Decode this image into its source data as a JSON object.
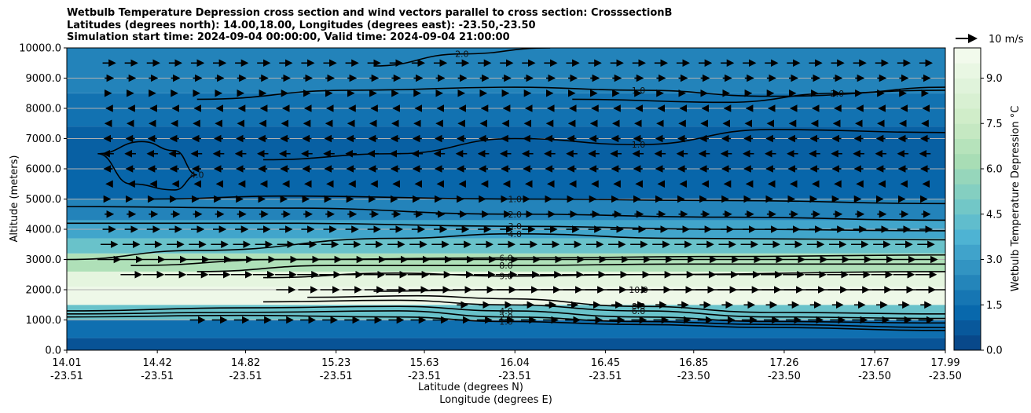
{
  "chart_data": {
    "type": "heatmap",
    "subtype": "filled contour cross section with contour lines and wind vectors",
    "title_lines": [
      "Wetbulb Temperature Depression cross section and wind vectors parallel to cross section: CrosssectionB",
      "Latitudes (degrees north): 14.00,18.00, Longitudes (degrees east): -23.50,-23.50",
      "Simulation start time: 2024-09-04 00:00:00, Valid time: 2024-09-04 21:00:00"
    ],
    "ylabel": "Altitude (meters)",
    "xlabel_lat": "Latitude (degrees N)",
    "xlabel_lon": "Longitude (degrees E)",
    "ylim": [
      0,
      10000
    ],
    "y_ticks": [
      "0.0",
      "1000.0",
      "2000.0",
      "3000.0",
      "4000.0",
      "5000.0",
      "6000.0",
      "7000.0",
      "8000.0",
      "9000.0",
      "10000.0"
    ],
    "y_tick_values": [
      0,
      1000,
      2000,
      3000,
      4000,
      5000,
      6000,
      7000,
      8000,
      9000,
      10000
    ],
    "xlim": [
      14.01,
      17.99
    ],
    "x_ticks_lat": [
      "14.01",
      "14.42",
      "14.82",
      "15.23",
      "15.63",
      "16.04",
      "16.45",
      "16.85",
      "17.26",
      "17.67",
      "17.99"
    ],
    "x_ticks_lon": [
      "-23.51",
      "-23.51",
      "-23.51",
      "-23.51",
      "-23.51",
      "-23.51",
      "-23.51",
      "-23.50",
      "-23.50",
      "-23.50",
      "-23.50"
    ],
    "x_tick_values": [
      14.01,
      14.42,
      14.82,
      15.23,
      15.63,
      16.04,
      16.45,
      16.85,
      17.26,
      17.67,
      17.99
    ],
    "grid": "horizontal",
    "colorbar": {
      "label": "Wetbulb Temperature Depression °C",
      "range": [
        0,
        10
      ],
      "ticks": [
        "0.0",
        "1.5",
        "3.0",
        "4.5",
        "6.0",
        "7.5",
        "9.0"
      ],
      "tick_values": [
        0,
        1.5,
        3,
        4.5,
        6,
        7.5,
        9
      ],
      "levels": 20,
      "colormap": [
        "#084081",
        "#0868ac",
        "#2b8cbe",
        "#4eb3d3",
        "#7bccc4",
        "#a8ddb5",
        "#ccebc5",
        "#e0f3db",
        "#f7fcf0"
      ]
    },
    "quiver_key": "10 m/s",
    "field_bands": [
      {
        "y_from": 0,
        "y_to": 400,
        "value": 0.6
      },
      {
        "y_from": 400,
        "y_to": 1000,
        "value": 1.5
      },
      {
        "y_from": 1000,
        "y_to": 1500,
        "value": 4.5
      },
      {
        "y_from": 1500,
        "y_to": 2100,
        "value": 9.5
      },
      {
        "y_from": 2100,
        "y_to": 2600,
        "value": 9.0
      },
      {
        "y_from": 2600,
        "y_to": 3200,
        "value": 6.5
      },
      {
        "y_from": 3200,
        "y_to": 3700,
        "value": 4.5
      },
      {
        "y_from": 3700,
        "y_to": 4300,
        "value": 3.3
      },
      {
        "y_from": 4300,
        "y_to": 5000,
        "value": 2.2
      },
      {
        "y_from": 5000,
        "y_to": 6000,
        "value": 1.2
      },
      {
        "y_from": 6000,
        "y_to": 7400,
        "value": 1.0
      },
      {
        "y_from": 7400,
        "y_to": 8500,
        "value": 1.6
      },
      {
        "y_from": 8500,
        "y_to": 10000,
        "value": 2.2
      }
    ],
    "contour_lines": [
      {
        "label": "1.0",
        "points": [
          [
            14.01,
            1100
          ],
          [
            14.8,
            1150
          ],
          [
            15.5,
            1100
          ],
          [
            16.0,
            950
          ],
          [
            16.6,
            850
          ],
          [
            17.2,
            750
          ],
          [
            17.99,
            650
          ]
        ]
      },
      {
        "label": "2.0",
        "points": [
          [
            14.01,
            1200
          ],
          [
            14.8,
            1250
          ],
          [
            15.5,
            1300
          ],
          [
            16.0,
            1100
          ],
          [
            16.6,
            950
          ],
          [
            17.2,
            850
          ],
          [
            17.99,
            750
          ]
        ]
      },
      {
        "label": "4.0",
        "points": [
          [
            14.01,
            1300
          ],
          [
            14.8,
            1400
          ],
          [
            15.5,
            1450
          ],
          [
            16.0,
            1300
          ],
          [
            16.6,
            1100
          ],
          [
            17.2,
            950
          ],
          [
            17.99,
            900
          ]
        ]
      },
      {
        "label": "6.0",
        "points": [
          [
            14.9,
            1600
          ],
          [
            15.5,
            1650
          ],
          [
            16.0,
            1500
          ],
          [
            16.6,
            1300
          ],
          [
            17.2,
            1100
          ],
          [
            17.99,
            1050
          ]
        ]
      },
      {
        "label": "8.0",
        "points": [
          [
            15.1,
            1750
          ],
          [
            15.6,
            1800
          ],
          [
            16.0,
            1700
          ],
          [
            16.6,
            1450
          ],
          [
            17.2,
            1250
          ],
          [
            17.99,
            1200
          ]
        ]
      },
      {
        "label": "10.0",
        "points": [
          [
            15.4,
            1950
          ],
          [
            16.0,
            2000
          ],
          [
            16.6,
            2000
          ],
          [
            17.2,
            2000
          ],
          [
            17.99,
            2000
          ]
        ]
      },
      {
        "label": "9.0",
        "points": [
          [
            14.9,
            2400
          ],
          [
            15.5,
            2550
          ],
          [
            16.0,
            2450
          ],
          [
            16.6,
            2500
          ],
          [
            17.99,
            2600
          ]
        ]
      },
      {
        "label": "8.0",
        "points": [
          [
            14.6,
            2600
          ],
          [
            15.2,
            2800
          ],
          [
            16.0,
            2800
          ],
          [
            16.8,
            2850
          ],
          [
            17.99,
            2850
          ]
        ]
      },
      {
        "label": "6.0",
        "points": [
          [
            14.3,
            2800
          ],
          [
            15.0,
            3000
          ],
          [
            16.0,
            3050
          ],
          [
            17.0,
            3100
          ],
          [
            17.99,
            3150
          ]
        ]
      },
      {
        "label": "4.0",
        "points": [
          [
            14.01,
            3000
          ],
          [
            14.6,
            3300
          ],
          [
            15.5,
            3700
          ],
          [
            16.04,
            3850
          ],
          [
            16.8,
            3700
          ],
          [
            17.99,
            3650
          ]
        ]
      },
      {
        "label": "3.0",
        "points": [
          [
            14.01,
            4200
          ],
          [
            15.0,
            4200
          ],
          [
            16.04,
            4100
          ],
          [
            17.0,
            4000
          ],
          [
            17.99,
            3950
          ]
        ]
      },
      {
        "label": "2.0",
        "points": [
          [
            14.01,
            4750
          ],
          [
            15.0,
            4700
          ],
          [
            16.04,
            4500
          ],
          [
            17.0,
            4400
          ],
          [
            17.99,
            4300
          ]
        ]
      },
      {
        "label": "1.0",
        "points": [
          [
            14.4,
            5000
          ],
          [
            15.0,
            5100
          ],
          [
            16.04,
            5000
          ],
          [
            17.0,
            4950
          ],
          [
            17.99,
            4850
          ]
        ]
      },
      {
        "label": "4.0",
        "points": [
          [
            14.15,
            6500
          ],
          [
            14.35,
            6900
          ],
          [
            14.5,
            6600
          ],
          [
            14.6,
            5800
          ],
          [
            14.5,
            5300
          ],
          [
            14.3,
            5500
          ],
          [
            14.15,
            6500
          ]
        ]
      },
      {
        "label": "1.0",
        "points": [
          [
            14.9,
            6300
          ],
          [
            15.5,
            6500
          ],
          [
            16.04,
            7000
          ],
          [
            16.6,
            6800
          ],
          [
            17.2,
            7300
          ],
          [
            17.99,
            7200
          ]
        ]
      },
      {
        "label": "1.0",
        "points": [
          [
            14.6,
            8300
          ],
          [
            15.3,
            8600
          ],
          [
            16.04,
            8700
          ],
          [
            16.6,
            8600
          ],
          [
            17.2,
            8400
          ],
          [
            17.99,
            8600
          ]
        ]
      },
      {
        "label": "2.0",
        "points": [
          [
            16.3,
            8300
          ],
          [
            17.0,
            8200
          ],
          [
            17.5,
            8500
          ],
          [
            17.99,
            8700
          ]
        ]
      },
      {
        "label": "2.0",
        "points": [
          [
            15.4,
            9400
          ],
          [
            15.8,
            9800
          ],
          [
            16.2,
            10000
          ]
        ]
      }
    ],
    "wind_vectors": [
      {
        "y": 1000,
        "u": 7,
        "from_x": 14.6
      },
      {
        "y": 1500,
        "u": 5,
        "from_x": 15.8
      },
      {
        "y": 2000,
        "u": 9,
        "from_x": 15.0
      },
      {
        "y": 2500,
        "u": 10,
        "from_x": 14.3
      },
      {
        "y": 3000,
        "u": 11,
        "from_x": 14.2
      },
      {
        "y": 3500,
        "u": 8,
        "from_x": 14.2
      },
      {
        "y": 4000,
        "u": 6,
        "from_x": 14.2
      },
      {
        "y": 4500,
        "u": 4,
        "from_x": 14.2
      },
      {
        "y": 5000,
        "u": 1,
        "from_x": 14.2
      },
      {
        "y": 5500,
        "u": -2,
        "from_x": 14.2
      },
      {
        "y": 6000,
        "u": -4,
        "from_x": 14.2
      },
      {
        "y": 6500,
        "u": -5,
        "from_x": 14.2
      },
      {
        "y": 7000,
        "u": -4,
        "from_x": 14.2
      },
      {
        "y": 7500,
        "u": -3,
        "from_x": 14.2
      },
      {
        "y": 8000,
        "u": -2,
        "from_x": 14.2
      },
      {
        "y": 8500,
        "u": 2,
        "from_x": 14.2
      },
      {
        "y": 9000,
        "u": 4,
        "from_x": 14.2
      },
      {
        "y": 9500,
        "u": 6,
        "from_x": 14.2
      }
    ]
  }
}
